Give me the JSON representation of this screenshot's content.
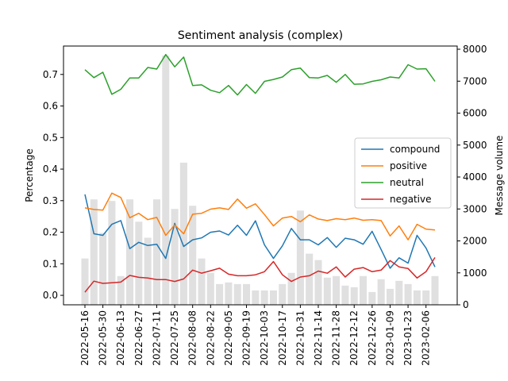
{
  "chart_data": {
    "type": "line",
    "title": "Sentiment analysis (complex)",
    "ylabel": "Percentage",
    "y2label": "Message volume",
    "ylim": [
      -0.03,
      0.79
    ],
    "y2lim": [
      0,
      8100
    ],
    "yticks": [
      0.0,
      0.1,
      0.2,
      0.3,
      0.4,
      0.5,
      0.6,
      0.7
    ],
    "y2ticks": [
      0,
      1000,
      2000,
      3000,
      4000,
      5000,
      6000,
      7000,
      8000
    ],
    "tick_every": 2,
    "grid": false,
    "legend_position": "center-right",
    "x": [
      "2022-05-16",
      "2022-05-23",
      "2022-05-30",
      "2022-06-06",
      "2022-06-13",
      "2022-06-20",
      "2022-06-27",
      "2022-07-04",
      "2022-07-11",
      "2022-07-18",
      "2022-07-25",
      "2022-08-01",
      "2022-08-08",
      "2022-08-15",
      "2022-08-22",
      "2022-08-29",
      "2022-09-05",
      "2022-09-12",
      "2022-09-19",
      "2022-09-26",
      "2022-10-03",
      "2022-10-10",
      "2022-10-17",
      "2022-10-24",
      "2022-10-31",
      "2022-11-07",
      "2022-11-14",
      "2022-11-21",
      "2022-11-28",
      "2022-12-05",
      "2022-12-12",
      "2022-12-19",
      "2022-12-26",
      "2023-01-02",
      "2023-01-09",
      "2023-01-16",
      "2023-01-23",
      "2023-01-30",
      "2023-02-06",
      "2023-02-13"
    ],
    "series": [
      {
        "name": "compound",
        "color": "#1f77b4",
        "values": [
          0.32,
          0.195,
          0.19,
          0.225,
          0.237,
          0.148,
          0.168,
          0.158,
          0.162,
          0.117,
          0.228,
          0.155,
          0.176,
          0.182,
          0.2,
          0.204,
          0.191,
          0.222,
          0.19,
          0.236,
          0.16,
          0.117,
          0.157,
          0.212,
          0.176,
          0.176,
          0.16,
          0.183,
          0.152,
          0.181,
          0.176,
          0.162,
          0.203,
          0.145,
          0.086,
          0.119,
          0.102,
          0.19,
          0.15,
          0.09
        ]
      },
      {
        "name": "positive",
        "color": "#ff7f0e",
        "values": [
          0.277,
          0.272,
          0.27,
          0.324,
          0.31,
          0.246,
          0.26,
          0.24,
          0.247,
          0.19,
          0.223,
          0.195,
          0.257,
          0.26,
          0.273,
          0.277,
          0.272,
          0.305,
          0.276,
          0.29,
          0.256,
          0.22,
          0.245,
          0.25,
          0.233,
          0.255,
          0.242,
          0.237,
          0.243,
          0.24,
          0.245,
          0.238,
          0.24,
          0.237,
          0.188,
          0.22,
          0.176,
          0.225,
          0.21,
          0.207
        ]
      },
      {
        "name": "neutral",
        "color": "#2ca02c",
        "values": [
          0.715,
          0.69,
          0.707,
          0.637,
          0.653,
          0.689,
          0.689,
          0.722,
          0.717,
          0.763,
          0.724,
          0.755,
          0.665,
          0.667,
          0.65,
          0.642,
          0.665,
          0.635,
          0.668,
          0.64,
          0.678,
          0.684,
          0.692,
          0.715,
          0.72,
          0.69,
          0.689,
          0.697,
          0.675,
          0.7,
          0.669,
          0.67,
          0.678,
          0.683,
          0.692,
          0.689,
          0.731,
          0.717,
          0.718,
          0.678
        ]
      },
      {
        "name": "negative",
        "color": "#d62728",
        "values": [
          0.01,
          0.045,
          0.038,
          0.04,
          0.042,
          0.063,
          0.057,
          0.055,
          0.05,
          0.05,
          0.044,
          0.052,
          0.08,
          0.07,
          0.078,
          0.086,
          0.067,
          0.062,
          0.062,
          0.065,
          0.075,
          0.107,
          0.065,
          0.044,
          0.058,
          0.062,
          0.077,
          0.07,
          0.09,
          0.058,
          0.083,
          0.088,
          0.075,
          0.08,
          0.11,
          0.09,
          0.085,
          0.055,
          0.075,
          0.12
        ]
      }
    ],
    "volume": {
      "color": "#e0e0e0",
      "values": [
        1450,
        3300,
        2250,
        3250,
        900,
        3300,
        2600,
        2100,
        3300,
        7800,
        3000,
        4450,
        3100,
        1450,
        1000,
        650,
        700,
        650,
        650,
        450,
        450,
        450,
        650,
        1000,
        2950,
        1600,
        1400,
        850,
        900,
        600,
        550,
        900,
        400,
        800,
        500,
        750,
        650,
        450,
        450,
        900
      ]
    }
  }
}
